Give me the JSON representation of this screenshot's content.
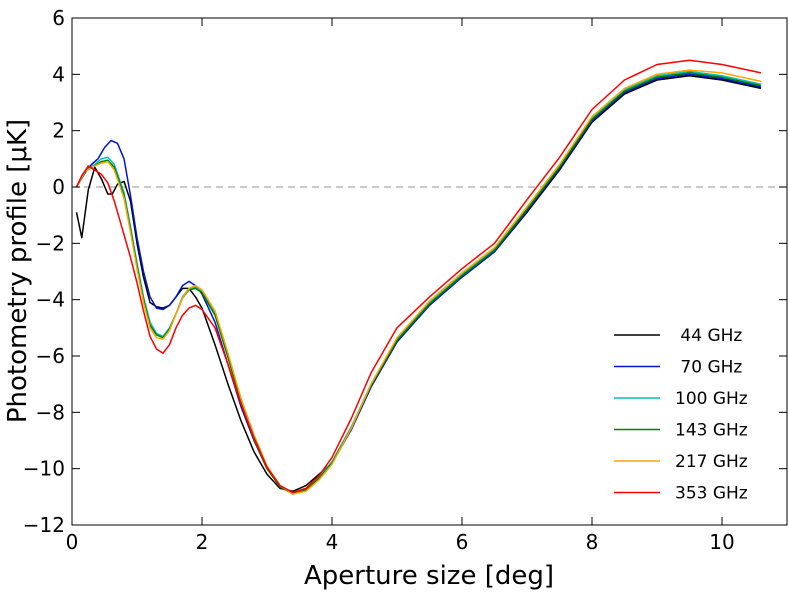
{
  "chart_data": {
    "type": "line",
    "title": "",
    "xlabel": "Aperture size [deg]",
    "ylabel": "Photometry profile [μK]",
    "xlim": [
      0,
      11
    ],
    "ylim": [
      -12,
      6
    ],
    "xticks": [
      0,
      2,
      4,
      6,
      8,
      10
    ],
    "yticks": [
      -12,
      -10,
      -8,
      -6,
      -4,
      -2,
      0,
      2,
      4,
      6
    ],
    "xtick_labels": [
      "0",
      "2",
      "4",
      "6",
      "8",
      "10"
    ],
    "ytick_labels": [
      "−12",
      "−10",
      "−8",
      "−6",
      "−4",
      "−2",
      "0",
      "2",
      "4",
      "6"
    ],
    "reference_line": {
      "y": 0,
      "style": "dashed",
      "color": "#aaaaaa"
    },
    "legend_position": "lower-right",
    "grid": false,
    "series": [
      {
        "name": " 44 GHz",
        "color": "#000000",
        "points": [
          [
            0.07,
            -0.9
          ],
          [
            0.15,
            -1.8
          ],
          [
            0.25,
            -0.1
          ],
          [
            0.35,
            0.7
          ],
          [
            0.45,
            0.3
          ],
          [
            0.55,
            -0.25
          ],
          [
            0.62,
            -0.25
          ],
          [
            0.7,
            0.1
          ],
          [
            0.8,
            0.2
          ],
          [
            0.9,
            -0.5
          ],
          [
            1.0,
            -2.0
          ],
          [
            1.1,
            -3.2
          ],
          [
            1.2,
            -4.1
          ],
          [
            1.3,
            -4.25
          ],
          [
            1.4,
            -4.3
          ],
          [
            1.5,
            -4.2
          ],
          [
            1.6,
            -3.9
          ],
          [
            1.7,
            -3.6
          ],
          [
            1.8,
            -3.6
          ],
          [
            1.9,
            -3.9
          ],
          [
            2.0,
            -4.3
          ],
          [
            2.2,
            -5.6
          ],
          [
            2.4,
            -7.0
          ],
          [
            2.6,
            -8.3
          ],
          [
            2.8,
            -9.4
          ],
          [
            3.0,
            -10.2
          ],
          [
            3.2,
            -10.7
          ],
          [
            3.4,
            -10.8
          ],
          [
            3.6,
            -10.6
          ],
          [
            3.8,
            -10.2
          ],
          [
            4.0,
            -9.8
          ],
          [
            4.3,
            -8.6
          ],
          [
            4.6,
            -7.1
          ],
          [
            5.0,
            -5.5
          ],
          [
            5.5,
            -4.2
          ],
          [
            6.0,
            -3.2
          ],
          [
            6.5,
            -2.3
          ],
          [
            7.0,
            -0.9
          ],
          [
            7.5,
            0.6
          ],
          [
            8.0,
            2.3
          ],
          [
            8.5,
            3.3
          ],
          [
            9.0,
            3.8
          ],
          [
            9.5,
            3.95
          ],
          [
            10.0,
            3.8
          ],
          [
            10.6,
            3.5
          ]
        ]
      },
      {
        "name": " 70 GHz",
        "color": "#0015d0",
        "points": [
          [
            0.07,
            0.0
          ],
          [
            0.2,
            0.5
          ],
          [
            0.3,
            0.8
          ],
          [
            0.4,
            1.0
          ],
          [
            0.5,
            1.4
          ],
          [
            0.6,
            1.65
          ],
          [
            0.7,
            1.55
          ],
          [
            0.8,
            1.0
          ],
          [
            0.9,
            -0.3
          ],
          [
            1.0,
            -1.8
          ],
          [
            1.1,
            -3.0
          ],
          [
            1.2,
            -3.9
          ],
          [
            1.3,
            -4.3
          ],
          [
            1.4,
            -4.35
          ],
          [
            1.5,
            -4.2
          ],
          [
            1.6,
            -3.9
          ],
          [
            1.7,
            -3.5
          ],
          [
            1.8,
            -3.35
          ],
          [
            1.9,
            -3.5
          ],
          [
            2.0,
            -3.8
          ],
          [
            2.2,
            -4.8
          ],
          [
            2.4,
            -6.3
          ],
          [
            2.6,
            -7.8
          ],
          [
            2.8,
            -9.0
          ],
          [
            3.0,
            -10.0
          ],
          [
            3.2,
            -10.6
          ],
          [
            3.4,
            -10.85
          ],
          [
            3.6,
            -10.7
          ],
          [
            3.8,
            -10.3
          ],
          [
            4.0,
            -9.8
          ],
          [
            4.3,
            -8.6
          ],
          [
            4.6,
            -7.1
          ],
          [
            5.0,
            -5.5
          ],
          [
            5.5,
            -4.2
          ],
          [
            6.0,
            -3.2
          ],
          [
            6.5,
            -2.3
          ],
          [
            7.0,
            -0.85
          ],
          [
            7.5,
            0.65
          ],
          [
            8.0,
            2.35
          ],
          [
            8.5,
            3.35
          ],
          [
            9.0,
            3.85
          ],
          [
            9.5,
            4.0
          ],
          [
            10.0,
            3.85
          ],
          [
            10.6,
            3.55
          ]
        ]
      },
      {
        "name": "100 GHz",
        "color": "#00bfbf",
        "points": [
          [
            0.07,
            0.0
          ],
          [
            0.2,
            0.55
          ],
          [
            0.35,
            0.8
          ],
          [
            0.45,
            1.0
          ],
          [
            0.55,
            1.05
          ],
          [
            0.65,
            0.8
          ],
          [
            0.8,
            -0.2
          ],
          [
            0.9,
            -1.4
          ],
          [
            1.0,
            -2.7
          ],
          [
            1.1,
            -3.9
          ],
          [
            1.2,
            -4.8
          ],
          [
            1.3,
            -5.2
          ],
          [
            1.4,
            -5.3
          ],
          [
            1.5,
            -5.0
          ],
          [
            1.6,
            -4.5
          ],
          [
            1.7,
            -3.9
          ],
          [
            1.8,
            -3.6
          ],
          [
            1.9,
            -3.55
          ],
          [
            2.0,
            -3.7
          ],
          [
            2.2,
            -4.5
          ],
          [
            2.4,
            -6.0
          ],
          [
            2.6,
            -7.6
          ],
          [
            2.8,
            -8.9
          ],
          [
            3.0,
            -9.95
          ],
          [
            3.2,
            -10.6
          ],
          [
            3.4,
            -10.85
          ],
          [
            3.6,
            -10.7
          ],
          [
            3.8,
            -10.3
          ],
          [
            4.0,
            -9.75
          ],
          [
            4.3,
            -8.5
          ],
          [
            4.6,
            -7.0
          ],
          [
            5.0,
            -5.4
          ],
          [
            5.5,
            -4.1
          ],
          [
            6.0,
            -3.1
          ],
          [
            6.5,
            -2.2
          ],
          [
            7.0,
            -0.75
          ],
          [
            7.5,
            0.75
          ],
          [
            8.0,
            2.45
          ],
          [
            8.5,
            3.45
          ],
          [
            9.0,
            3.95
          ],
          [
            9.5,
            4.1
          ],
          [
            10.0,
            3.95
          ],
          [
            10.6,
            3.65
          ]
        ]
      },
      {
        "name": "143 GHz",
        "color": "#008000",
        "points": [
          [
            0.07,
            0.0
          ],
          [
            0.2,
            0.55
          ],
          [
            0.35,
            0.75
          ],
          [
            0.45,
            0.9
          ],
          [
            0.55,
            0.95
          ],
          [
            0.65,
            0.7
          ],
          [
            0.8,
            -0.3
          ],
          [
            0.9,
            -1.5
          ],
          [
            1.0,
            -2.8
          ],
          [
            1.1,
            -4.0
          ],
          [
            1.2,
            -4.9
          ],
          [
            1.3,
            -5.25
          ],
          [
            1.4,
            -5.35
          ],
          [
            1.5,
            -5.05
          ],
          [
            1.6,
            -4.5
          ],
          [
            1.7,
            -3.95
          ],
          [
            1.8,
            -3.65
          ],
          [
            1.9,
            -3.6
          ],
          [
            2.0,
            -3.75
          ],
          [
            2.2,
            -4.55
          ],
          [
            2.4,
            -6.05
          ],
          [
            2.6,
            -7.65
          ],
          [
            2.8,
            -8.95
          ],
          [
            3.0,
            -10.0
          ],
          [
            3.2,
            -10.65
          ],
          [
            3.4,
            -10.9
          ],
          [
            3.6,
            -10.75
          ],
          [
            3.8,
            -10.35
          ],
          [
            4.0,
            -9.8
          ],
          [
            4.3,
            -8.55
          ],
          [
            4.6,
            -7.05
          ],
          [
            5.0,
            -5.45
          ],
          [
            5.5,
            -4.15
          ],
          [
            6.0,
            -3.15
          ],
          [
            6.5,
            -2.25
          ],
          [
            7.0,
            -0.8
          ],
          [
            7.5,
            0.7
          ],
          [
            8.0,
            2.4
          ],
          [
            8.5,
            3.4
          ],
          [
            9.0,
            3.9
          ],
          [
            9.5,
            4.05
          ],
          [
            10.0,
            3.9
          ],
          [
            10.6,
            3.6
          ]
        ]
      },
      {
        "name": "217 GHz",
        "color": "#ffa500",
        "points": [
          [
            0.07,
            0.0
          ],
          [
            0.2,
            0.55
          ],
          [
            0.35,
            0.75
          ],
          [
            0.45,
            0.85
          ],
          [
            0.55,
            0.9
          ],
          [
            0.65,
            0.6
          ],
          [
            0.8,
            -0.4
          ],
          [
            0.9,
            -1.6
          ],
          [
            1.0,
            -2.9
          ],
          [
            1.1,
            -4.1
          ],
          [
            1.2,
            -5.0
          ],
          [
            1.3,
            -5.35
          ],
          [
            1.4,
            -5.4
          ],
          [
            1.5,
            -5.1
          ],
          [
            1.6,
            -4.5
          ],
          [
            1.7,
            -3.95
          ],
          [
            1.8,
            -3.6
          ],
          [
            1.9,
            -3.5
          ],
          [
            2.0,
            -3.65
          ],
          [
            2.2,
            -4.4
          ],
          [
            2.4,
            -5.9
          ],
          [
            2.6,
            -7.5
          ],
          [
            2.8,
            -8.8
          ],
          [
            3.0,
            -9.9
          ],
          [
            3.2,
            -10.6
          ],
          [
            3.4,
            -10.9
          ],
          [
            3.6,
            -10.8
          ],
          [
            3.8,
            -10.4
          ],
          [
            4.0,
            -9.85
          ],
          [
            4.3,
            -8.55
          ],
          [
            4.6,
            -7.0
          ],
          [
            5.0,
            -5.35
          ],
          [
            5.5,
            -4.05
          ],
          [
            6.0,
            -3.05
          ],
          [
            6.5,
            -2.15
          ],
          [
            7.0,
            -0.7
          ],
          [
            7.5,
            0.8
          ],
          [
            8.0,
            2.5
          ],
          [
            8.5,
            3.5
          ],
          [
            9.0,
            4.0
          ],
          [
            9.5,
            4.15
          ],
          [
            10.0,
            4.05
          ],
          [
            10.6,
            3.75
          ]
        ]
      },
      {
        "name": "353 GHz",
        "color": "#ff0000",
        "points": [
          [
            0.07,
            0.0
          ],
          [
            0.15,
            0.4
          ],
          [
            0.25,
            0.75
          ],
          [
            0.35,
            0.6
          ],
          [
            0.45,
            0.45
          ],
          [
            0.55,
            0.15
          ],
          [
            0.65,
            -0.5
          ],
          [
            0.75,
            -1.3
          ],
          [
            0.9,
            -2.5
          ],
          [
            1.0,
            -3.4
          ],
          [
            1.1,
            -4.4
          ],
          [
            1.2,
            -5.3
          ],
          [
            1.3,
            -5.75
          ],
          [
            1.4,
            -5.9
          ],
          [
            1.5,
            -5.6
          ],
          [
            1.6,
            -5.0
          ],
          [
            1.7,
            -4.55
          ],
          [
            1.8,
            -4.3
          ],
          [
            1.9,
            -4.2
          ],
          [
            2.0,
            -4.35
          ],
          [
            2.2,
            -5.0
          ],
          [
            2.4,
            -6.3
          ],
          [
            2.6,
            -7.7
          ],
          [
            2.8,
            -8.9
          ],
          [
            3.0,
            -9.95
          ],
          [
            3.2,
            -10.6
          ],
          [
            3.4,
            -10.85
          ],
          [
            3.6,
            -10.7
          ],
          [
            3.8,
            -10.25
          ],
          [
            4.0,
            -9.6
          ],
          [
            4.3,
            -8.2
          ],
          [
            4.6,
            -6.6
          ],
          [
            5.0,
            -5.0
          ],
          [
            5.5,
            -3.9
          ],
          [
            6.0,
            -2.9
          ],
          [
            6.5,
            -2.0
          ],
          [
            7.0,
            -0.45
          ],
          [
            7.5,
            1.05
          ],
          [
            8.0,
            2.75
          ],
          [
            8.5,
            3.8
          ],
          [
            9.0,
            4.35
          ],
          [
            9.5,
            4.5
          ],
          [
            10.0,
            4.35
          ],
          [
            10.6,
            4.05
          ]
        ]
      }
    ]
  }
}
